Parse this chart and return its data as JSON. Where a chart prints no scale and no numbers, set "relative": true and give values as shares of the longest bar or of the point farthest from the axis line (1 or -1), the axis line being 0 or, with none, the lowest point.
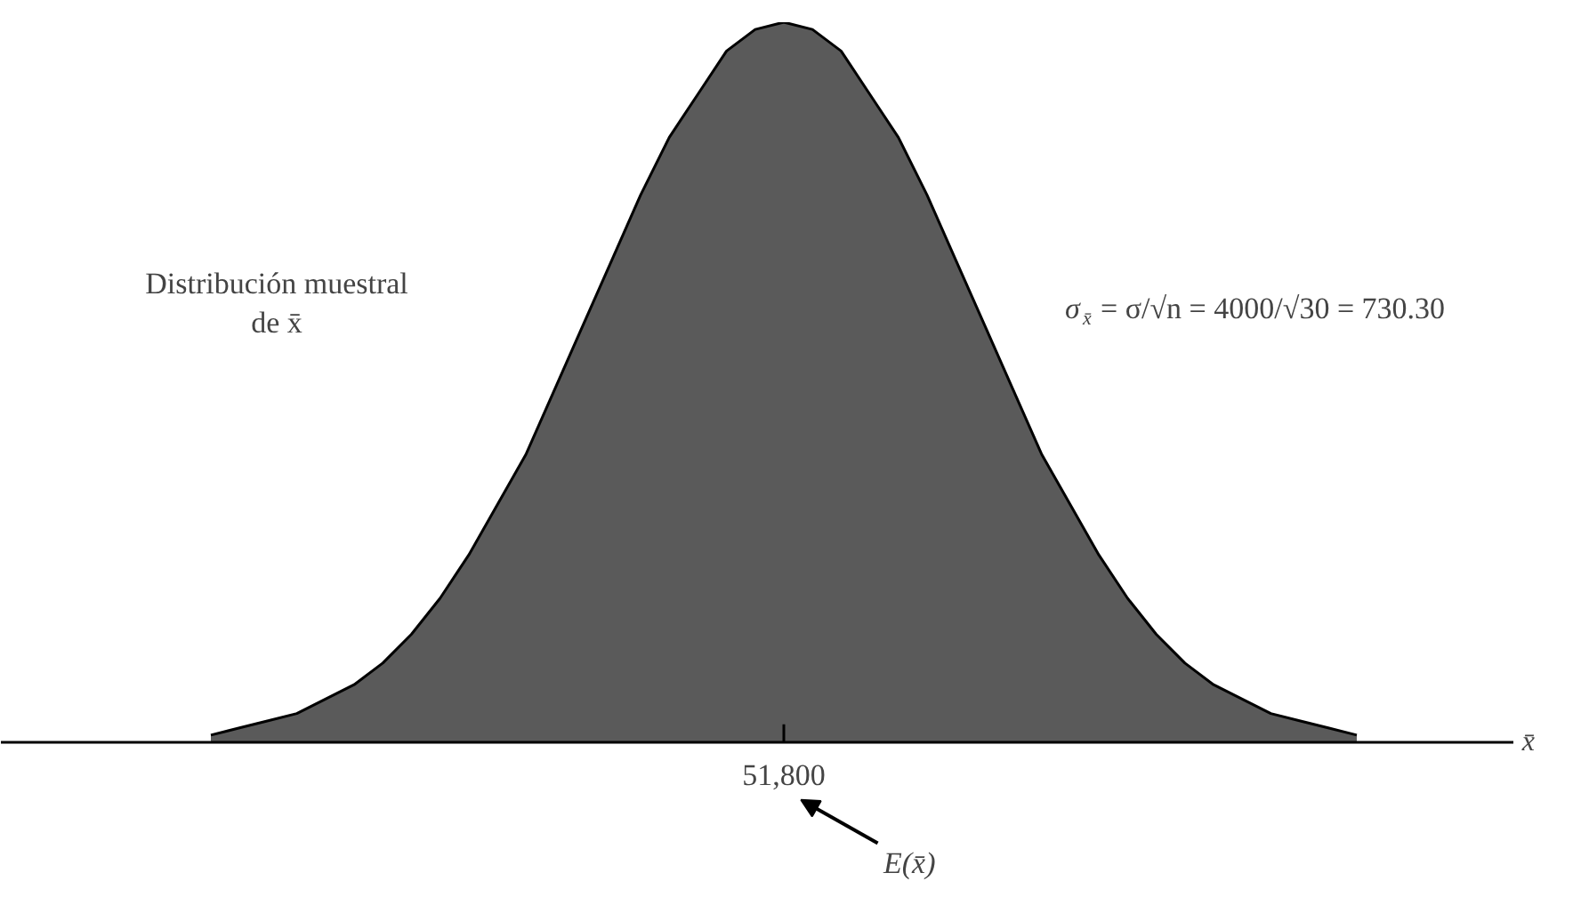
{
  "chart_data": {
    "type": "area",
    "relative": true,
    "color": "#5a5a5a",
    "categories": [
      null,
      null,
      null,
      null,
      null,
      null,
      null,
      null,
      null,
      null,
      null,
      null,
      null,
      null,
      null,
      null,
      null,
      null,
      null,
      null,
      null,
      null,
      null,
      null,
      null,
      null,
      null,
      null,
      null,
      null,
      null,
      null,
      null,
      null,
      null,
      null,
      null,
      null,
      null,
      null,
      null
    ],
    "values": [
      0.01,
      0.02,
      0.03,
      0.04,
      0.06,
      0.08,
      0.11,
      0.15,
      0.2,
      0.26,
      0.33,
      0.4,
      0.49,
      0.58,
      0.67,
      0.76,
      0.84,
      0.9,
      0.96,
      0.99,
      1,
      0.99,
      0.96,
      0.9,
      0.84,
      0.76,
      0.67,
      0.58,
      0.49,
      0.4,
      0.33,
      0.26,
      0.2,
      0.15,
      0.11,
      0.08,
      0.06,
      0.04,
      0.03,
      0.02,
      0.01
    ],
    "annotations": [
      "Distribución muestral\nde x̄",
      "σ$_{x̄}$ = σ/√n = 4000/√30 = 730.30",
      "51,800",
      "E(x̄)",
      "x̄"
    ]
  }
}
